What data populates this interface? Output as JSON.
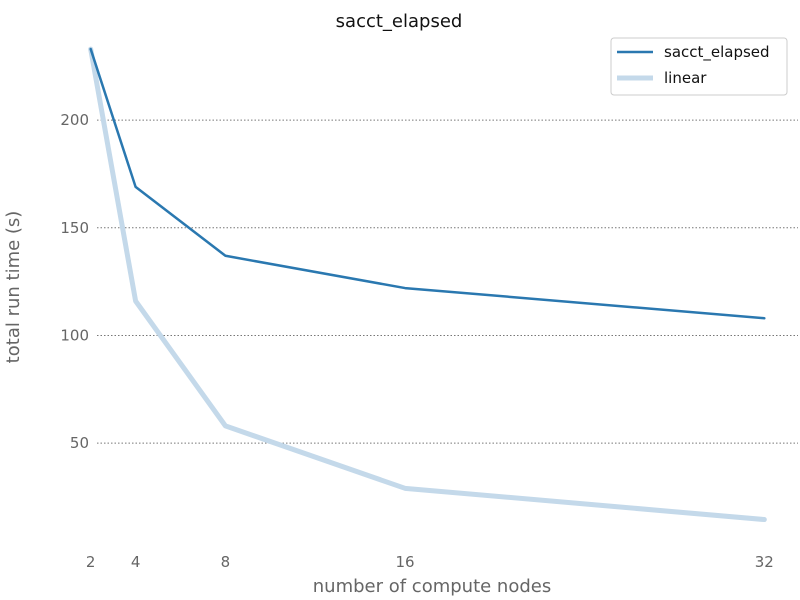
{
  "chart_data": {
    "type": "line",
    "title": "sacct_elapsed",
    "xlabel": "number of compute nodes",
    "ylabel": "total run time (s)",
    "x": [
      2,
      4,
      8,
      16,
      32
    ],
    "x_ticks": [
      "2",
      "4",
      "8",
      "16",
      "32"
    ],
    "y_ticks": [
      "50",
      "100",
      "150",
      "200"
    ],
    "xlim": [
      0.5,
      33.5
    ],
    "ylim": [
      5,
      240
    ],
    "grid": "horizontal-dotted",
    "legend_position": "top-right",
    "series": [
      {
        "name": "sacct_elapsed",
        "values": [
          233,
          169,
          137,
          122,
          108
        ],
        "color": "#2a78b0"
      },
      {
        "name": "linear",
        "values": [
          233,
          116,
          58,
          29,
          14.5
        ],
        "color": "#c4d9ea"
      }
    ]
  }
}
